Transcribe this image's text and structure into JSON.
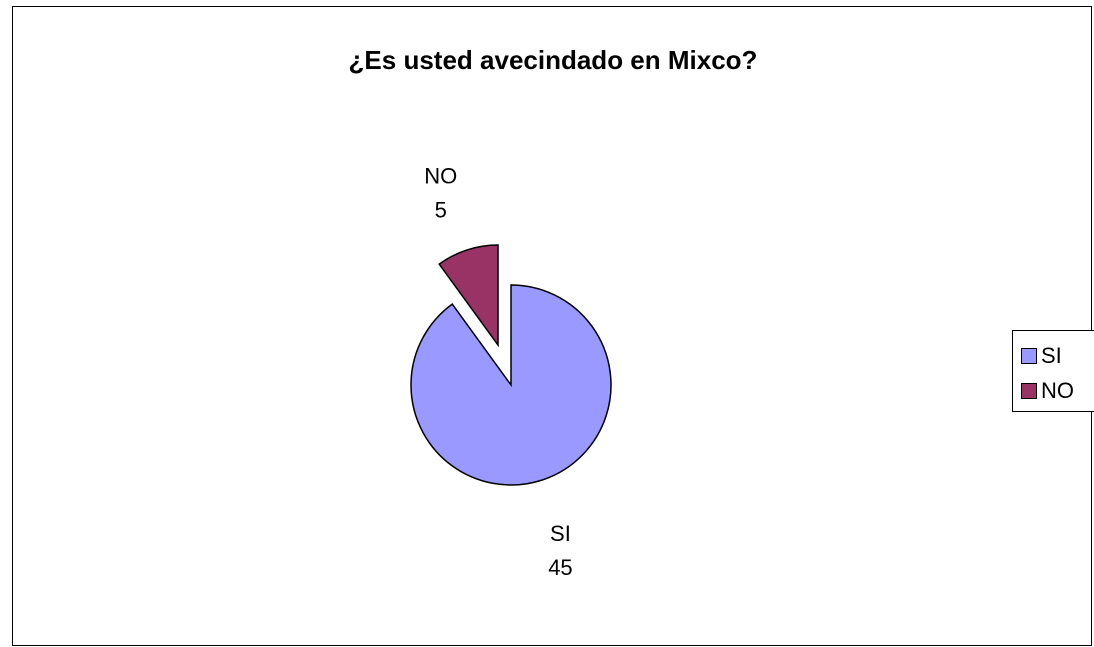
{
  "chart_data": {
    "type": "pie",
    "title": "¿Es usted avecindado en Mixco?",
    "categories": [
      "SI",
      "NO"
    ],
    "values": [
      45,
      5
    ],
    "colors": [
      "#9999FF",
      "#993366"
    ],
    "exploded": [
      "NO"
    ],
    "data_labels": [
      {
        "category": "SI",
        "value": "45"
      },
      {
        "category": "NO",
        "value": "5"
      }
    ],
    "legend": {
      "placement": "right",
      "entries": [
        "SI",
        "NO"
      ]
    }
  }
}
